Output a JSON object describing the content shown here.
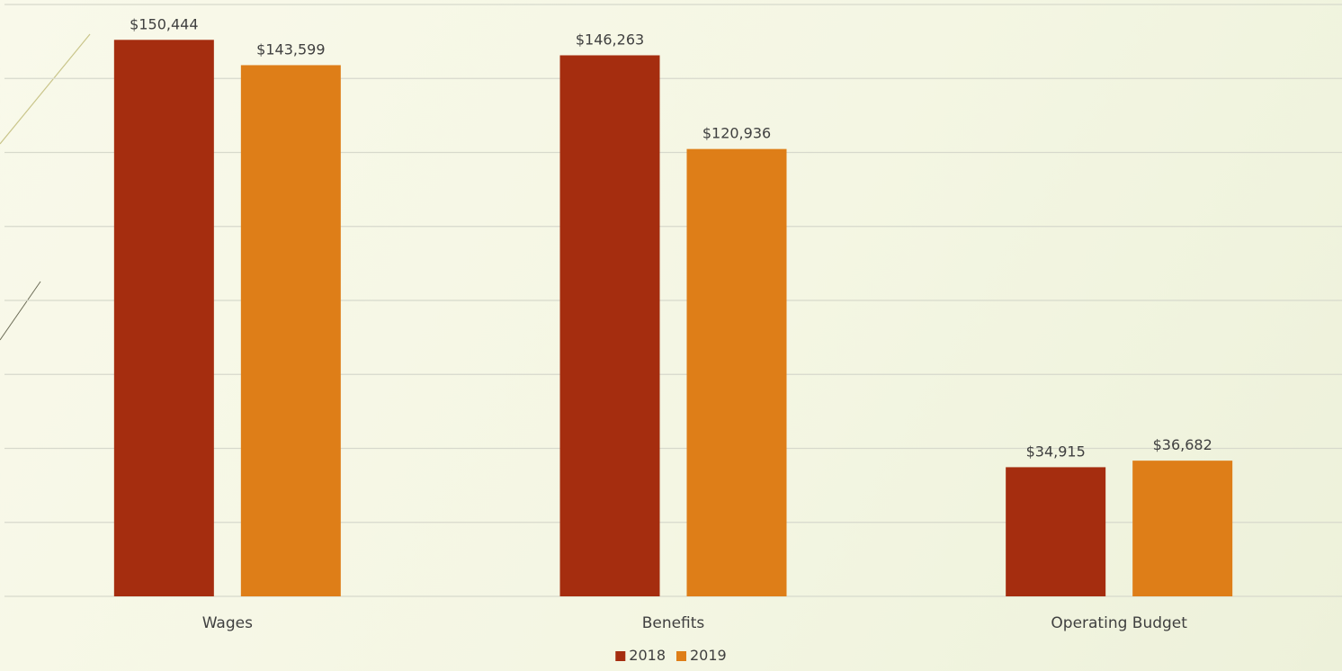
{
  "chart_data": {
    "type": "bar",
    "categories": [
      "Wages",
      "Benefits",
      "Operating Budget"
    ],
    "series": [
      {
        "name": "2018",
        "values": [
          150444,
          146263,
          34915
        ],
        "labels": [
          "$150,444",
          "$146,263",
          "$34,915"
        ],
        "color": "#a52d0f"
      },
      {
        "name": "2019",
        "values": [
          143599,
          120936,
          36682
        ],
        "labels": [
          "$143,599",
          "$120,936",
          "$36,682"
        ],
        "color": "#de7e18"
      }
    ],
    "ylim": [
      0,
      160000
    ],
    "grid": true,
    "legend": "bottom",
    "title": "",
    "xlabel": "",
    "ylabel": ""
  },
  "colors": {
    "gridline": "#d7d9cc",
    "label_text": "#404040",
    "decor_line": "#c9c58a"
  }
}
